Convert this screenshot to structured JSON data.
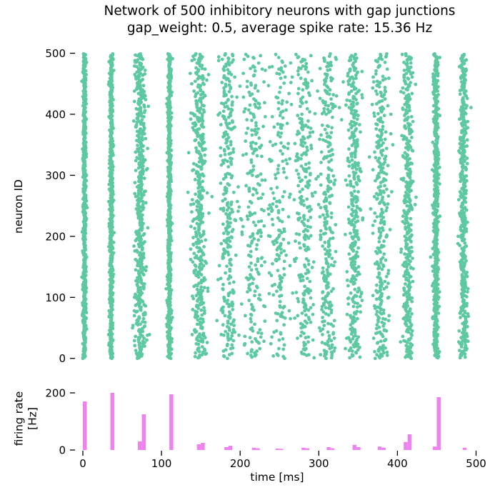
{
  "title": {
    "line1": "Network of 500 inhibitory neurons with gap junctions",
    "line2": "gap_weight: 0.5, average spike rate: 15.36 Hz"
  },
  "colors": {
    "spike_dot": "#5ec9a1",
    "rate_bar": "#ee82ee",
    "text": "#000000",
    "background": "#ffffff"
  },
  "chart_data": [
    {
      "type": "scatter",
      "title": "spike raster",
      "xlabel": "",
      "ylabel": "neuron ID",
      "xlim": [
        0,
        500
      ],
      "ylim": [
        0,
        500
      ],
      "yticks": [
        0,
        100,
        200,
        300,
        400,
        500
      ],
      "grid": false,
      "legend": "none",
      "n_neurons": 500,
      "marker_color": "#5ec9a1",
      "bursts": [
        {
          "t": 2,
          "jitter": 1.2,
          "fraction": 1.0
        },
        {
          "t": 36,
          "jitter": 1.2,
          "fraction": 1.0
        },
        {
          "t": 73,
          "jitter": 3.5,
          "fraction": 0.95
        },
        {
          "t": 110,
          "jitter": 1.3,
          "fraction": 1.0
        },
        {
          "t": 148,
          "jitter": 4.5,
          "fraction": 0.8
        },
        {
          "t": 184,
          "jitter": 5.0,
          "fraction": 0.55
        },
        {
          "t": 217,
          "jitter": 7.0,
          "fraction": 0.42
        },
        {
          "t": 249,
          "jitter": 8.0,
          "fraction": 0.38
        },
        {
          "t": 281,
          "jitter": 6.0,
          "fraction": 0.5
        },
        {
          "t": 312,
          "jitter": 5.0,
          "fraction": 0.55
        },
        {
          "t": 345,
          "jitter": 4.5,
          "fraction": 0.65
        },
        {
          "t": 379,
          "jitter": 5.0,
          "fraction": 0.6
        },
        {
          "t": 413,
          "jitter": 3.5,
          "fraction": 0.75
        },
        {
          "t": 449,
          "jitter": 1.8,
          "fraction": 0.95
        },
        {
          "t": 484,
          "jitter": 2.5,
          "fraction": 0.85
        }
      ]
    },
    {
      "type": "bar",
      "title": "population firing rate",
      "xlabel": "time [ms]",
      "ylabel": "firing rate [Hz]",
      "ylabel_lines": [
        "firing rate",
        "[Hz]"
      ],
      "xlim": [
        0,
        500
      ],
      "ylim": [
        0,
        210
      ],
      "xticks": [
        0,
        100,
        200,
        300,
        400,
        500
      ],
      "yticks": [
        0,
        200
      ],
      "grid": false,
      "legend": "none",
      "bar_color": "#ee82ee",
      "bin_width_ms": 5,
      "bins": [
        {
          "t": 0,
          "hz": 170
        },
        {
          "t": 35,
          "hz": 200
        },
        {
          "t": 70,
          "hz": 30
        },
        {
          "t": 75,
          "hz": 125
        },
        {
          "t": 110,
          "hz": 195
        },
        {
          "t": 145,
          "hz": 20
        },
        {
          "t": 150,
          "hz": 25
        },
        {
          "t": 180,
          "hz": 10
        },
        {
          "t": 185,
          "hz": 15
        },
        {
          "t": 215,
          "hz": 8
        },
        {
          "t": 220,
          "hz": 6
        },
        {
          "t": 245,
          "hz": 5
        },
        {
          "t": 250,
          "hz": 4
        },
        {
          "t": 278,
          "hz": 8
        },
        {
          "t": 283,
          "hz": 6
        },
        {
          "t": 310,
          "hz": 10
        },
        {
          "t": 315,
          "hz": 6
        },
        {
          "t": 343,
          "hz": 18
        },
        {
          "t": 348,
          "hz": 10
        },
        {
          "t": 375,
          "hz": 12
        },
        {
          "t": 380,
          "hz": 8
        },
        {
          "t": 408,
          "hz": 28
        },
        {
          "t": 413,
          "hz": 55
        },
        {
          "t": 445,
          "hz": 12
        },
        {
          "t": 450,
          "hz": 185
        },
        {
          "t": 483,
          "hz": 8
        }
      ]
    }
  ]
}
